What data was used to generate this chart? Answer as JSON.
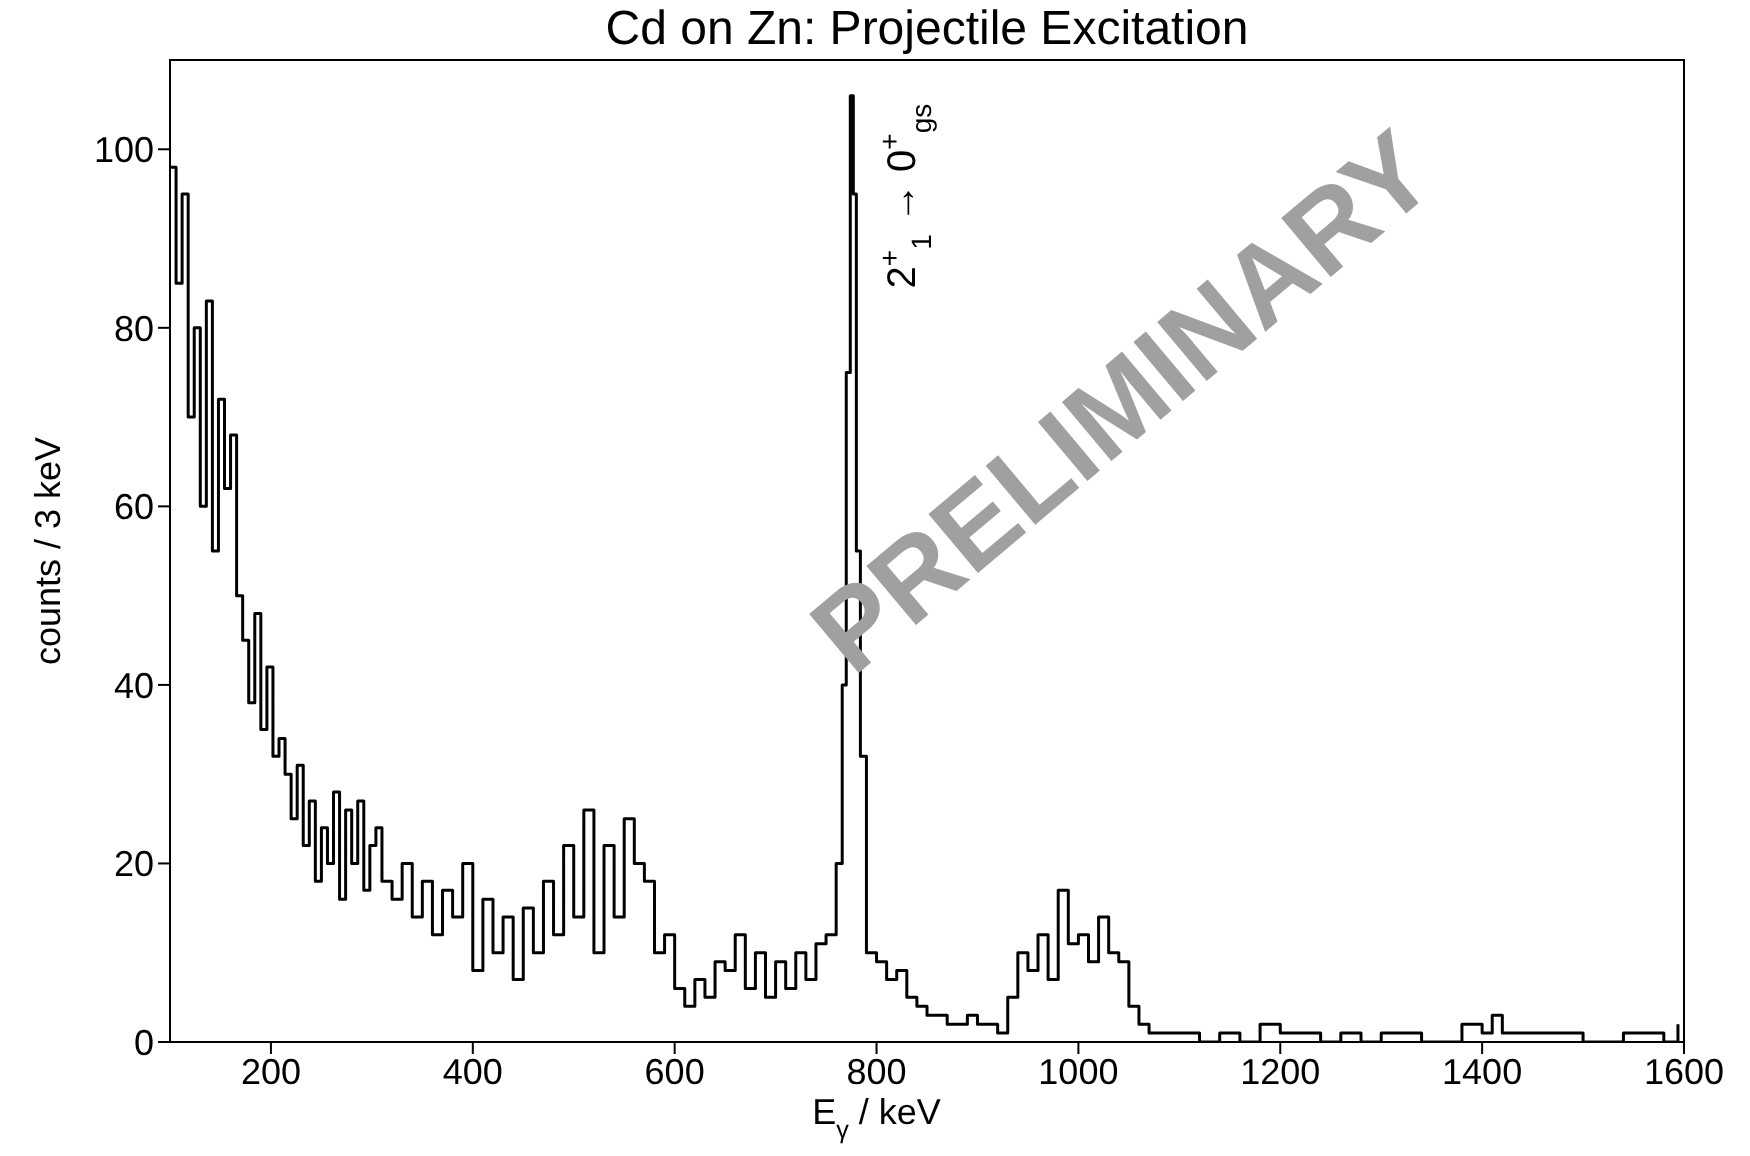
{
  "chart_data": {
    "type": "step",
    "title": "Cd on Zn: Projectile Excitation",
    "xlabel": "E$_{γ}$ / keV",
    "ylabel": "counts / 3 keV",
    "xlim": [
      100,
      1600
    ],
    "xticks": [
      200,
      400,
      600,
      800,
      1000,
      1200,
      1400,
      1600
    ],
    "ylim": [
      0,
      110
    ],
    "yticks": [
      0,
      20,
      40,
      60,
      80,
      100
    ],
    "annotations": [
      {
        "text": "2$^{+}$$_{1}$ → 0$^{+}$$_{gs}$",
        "x": 775,
        "y": 106
      },
      "PRELIMINARY"
    ],
    "series": [
      {
        "color": "#000000",
        "x": [
          100,
          106,
          112,
          118,
          124,
          130,
          136,
          142,
          148,
          154,
          160,
          166,
          172,
          178,
          184,
          190,
          196,
          202,
          208,
          214,
          220,
          226,
          232,
          238,
          244,
          250,
          256,
          262,
          268,
          274,
          280,
          286,
          292,
          298,
          304,
          310,
          320,
          330,
          340,
          350,
          360,
          370,
          380,
          390,
          400,
          410,
          420,
          430,
          440,
          450,
          460,
          470,
          480,
          490,
          500,
          510,
          520,
          530,
          540,
          550,
          560,
          570,
          580,
          590,
          600,
          610,
          620,
          630,
          640,
          650,
          660,
          670,
          680,
          690,
          700,
          710,
          720,
          730,
          740,
          750,
          760,
          766,
          770,
          774,
          777,
          780,
          784,
          790,
          800,
          810,
          820,
          830,
          840,
          850,
          860,
          870,
          880,
          890,
          900,
          910,
          920,
          930,
          940,
          950,
          960,
          970,
          980,
          990,
          1000,
          1010,
          1020,
          1030,
          1040,
          1050,
          1060,
          1070,
          1080,
          1100,
          1120,
          1140,
          1160,
          1180,
          1200,
          1220,
          1240,
          1260,
          1280,
          1300,
          1340,
          1380,
          1400,
          1410,
          1420,
          1460,
          1500,
          1540,
          1580,
          1594
        ],
        "values": [
          98,
          85,
          95,
          70,
          80,
          60,
          83,
          55,
          72,
          62,
          68,
          50,
          45,
          38,
          48,
          35,
          42,
          32,
          34,
          30,
          25,
          31,
          22,
          27,
          18,
          24,
          20,
          28,
          16,
          26,
          20,
          27,
          17,
          22,
          24,
          18,
          16,
          20,
          14,
          18,
          12,
          17,
          14,
          20,
          8,
          16,
          10,
          14,
          7,
          15,
          10,
          18,
          12,
          22,
          14,
          26,
          10,
          22,
          14,
          25,
          20,
          18,
          10,
          12,
          6,
          4,
          7,
          5,
          9,
          8,
          12,
          6,
          10,
          5,
          9,
          6,
          10,
          7,
          11,
          12,
          20,
          40,
          75,
          106,
          95,
          55,
          32,
          10,
          9,
          7,
          8,
          5,
          4,
          3,
          3,
          2,
          2,
          3,
          2,
          2,
          1,
          5,
          10,
          8,
          12,
          7,
          17,
          11,
          12,
          9,
          14,
          10,
          9,
          4,
          2,
          1,
          1,
          1,
          0,
          1,
          0,
          2,
          1,
          1,
          0,
          1,
          0,
          1,
          0,
          2,
          1,
          3,
          1,
          1,
          0,
          1,
          0,
          2
        ]
      }
    ]
  }
}
